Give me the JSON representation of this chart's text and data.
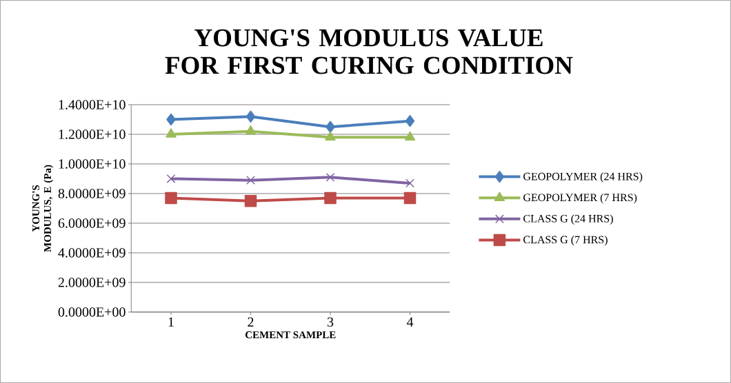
{
  "chart_data": {
    "type": "line",
    "title": "YOUNG'S MODULUS VALUE FOR FIRST CURING CONDITION",
    "xlabel": "CEMENT SAMPLE",
    "ylabel": "YOUNG'S MODULUS, E (Pa)",
    "categories": [
      "1",
      "2",
      "3",
      "4"
    ],
    "series": [
      {
        "name": "GEOPOLYMER (24 HRS)",
        "color": "#4a7ebb",
        "marker": "diamond",
        "values": [
          13000000000.0,
          13200000000.0,
          12500000000.0,
          12900000000.0
        ]
      },
      {
        "name": "GEOPOLYMER (7 HRS)",
        "color": "#9bbb59",
        "marker": "triangle",
        "values": [
          12000000000.0,
          12200000000.0,
          11800000000.0,
          11800000000.0
        ]
      },
      {
        "name": "CLASS G (24 HRS)",
        "color": "#8064a2",
        "marker": "cross",
        "values": [
          9000000000.0,
          8900000000.0,
          9100000000.0,
          8700000000.0
        ]
      },
      {
        "name": "CLASS G (7 HRS)",
        "color": "#be4b48",
        "marker": "square",
        "values": [
          7700000000.0,
          7500000000.0,
          7700000000.0,
          7700000000.0
        ]
      }
    ],
    "ylim": [
      0,
      14000000000.0
    ],
    "yticks": [
      {
        "value": 0,
        "label": "0.0000E+00"
      },
      {
        "value": 2000000000.0,
        "label": "2.0000E+09"
      },
      {
        "value": 4000000000.0,
        "label": "4.0000E+09"
      },
      {
        "value": 6000000000.0,
        "label": "6.0000E+09"
      },
      {
        "value": 8000000000.0,
        "label": "8.0000E+09"
      },
      {
        "value": 10000000000.0,
        "label": "1.0000E+10"
      },
      {
        "value": 12000000000.0,
        "label": "1.2000E+10"
      },
      {
        "value": 14000000000.0,
        "label": "1.4000E+10"
      }
    ],
    "grid": "y",
    "legend": "right",
    "line_style": "solid"
  }
}
